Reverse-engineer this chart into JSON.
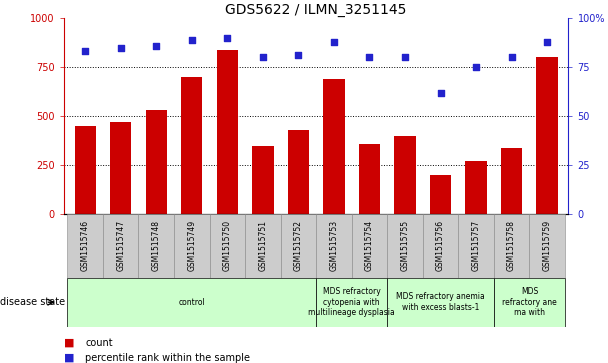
{
  "title": "GDS5622 / ILMN_3251145",
  "samples": [
    "GSM1515746",
    "GSM1515747",
    "GSM1515748",
    "GSM1515749",
    "GSM1515750",
    "GSM1515751",
    "GSM1515752",
    "GSM1515753",
    "GSM1515754",
    "GSM1515755",
    "GSM1515756",
    "GSM1515757",
    "GSM1515758",
    "GSM1515759"
  ],
  "counts": [
    450,
    470,
    530,
    700,
    840,
    350,
    430,
    690,
    360,
    400,
    200,
    270,
    340,
    800
  ],
  "percentiles": [
    83,
    85,
    86,
    89,
    90,
    80,
    81,
    88,
    80,
    80,
    62,
    75,
    80,
    88
  ],
  "bar_color": "#cc0000",
  "dot_color": "#2222cc",
  "ylim_left": [
    0,
    1000
  ],
  "ylim_right": [
    0,
    100
  ],
  "yticks_left": [
    0,
    250,
    500,
    750,
    1000
  ],
  "yticks_right": [
    0,
    25,
    50,
    75,
    100
  ],
  "disease_groups": [
    {
      "label": "control",
      "start": 0,
      "end": 7
    },
    {
      "label": "MDS refractory\ncytopenia with\nmultilineage dysplasia",
      "start": 7,
      "end": 9
    },
    {
      "label": "MDS refractory anemia\nwith excess blasts-1",
      "start": 9,
      "end": 12
    },
    {
      "label": "MDS\nrefractory ane\nma with",
      "start": 12,
      "end": 14
    }
  ],
  "disease_state_label": "disease state",
  "legend_count_label": "count",
  "legend_pct_label": "percentile rank within the sample",
  "tick_color_left": "#cc0000",
  "tick_color_right": "#2222cc",
  "green_color": "#ccffcc",
  "gray_color": "#cccccc"
}
